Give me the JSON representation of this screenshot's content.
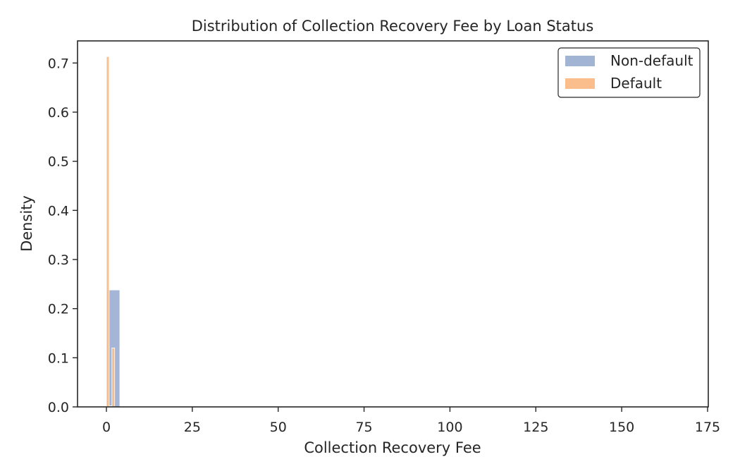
{
  "chart_data": {
    "type": "bar",
    "title": "Distribution of Collection Recovery Fee by Loan Status",
    "xlabel": "Collection Recovery Fee",
    "ylabel": "Density",
    "xlim": [
      -8.5,
      175
    ],
    "ylim": [
      0,
      0.745
    ],
    "xticks": [
      0,
      25,
      50,
      75,
      100,
      125,
      150,
      175
    ],
    "yticks": [
      0.0,
      0.1,
      0.2,
      0.3,
      0.4,
      0.5,
      0.6,
      0.7
    ],
    "grid": false,
    "legend_position": "top-right",
    "series": [
      {
        "name": "Non-default",
        "color": "#a2b4d4",
        "bins": [
          {
            "x0": 0.0,
            "x1": 3.9,
            "value": 0.238
          }
        ]
      },
      {
        "name": "Default",
        "color": "#f9be8b",
        "bins": [
          {
            "x0": 0.0,
            "x1": 0.8,
            "value": 0.713
          },
          {
            "x0": 0.8,
            "x1": 1.6,
            "value": 0.002
          },
          {
            "x0": 1.6,
            "x1": 2.4,
            "value": 0.12
          }
        ]
      }
    ]
  }
}
